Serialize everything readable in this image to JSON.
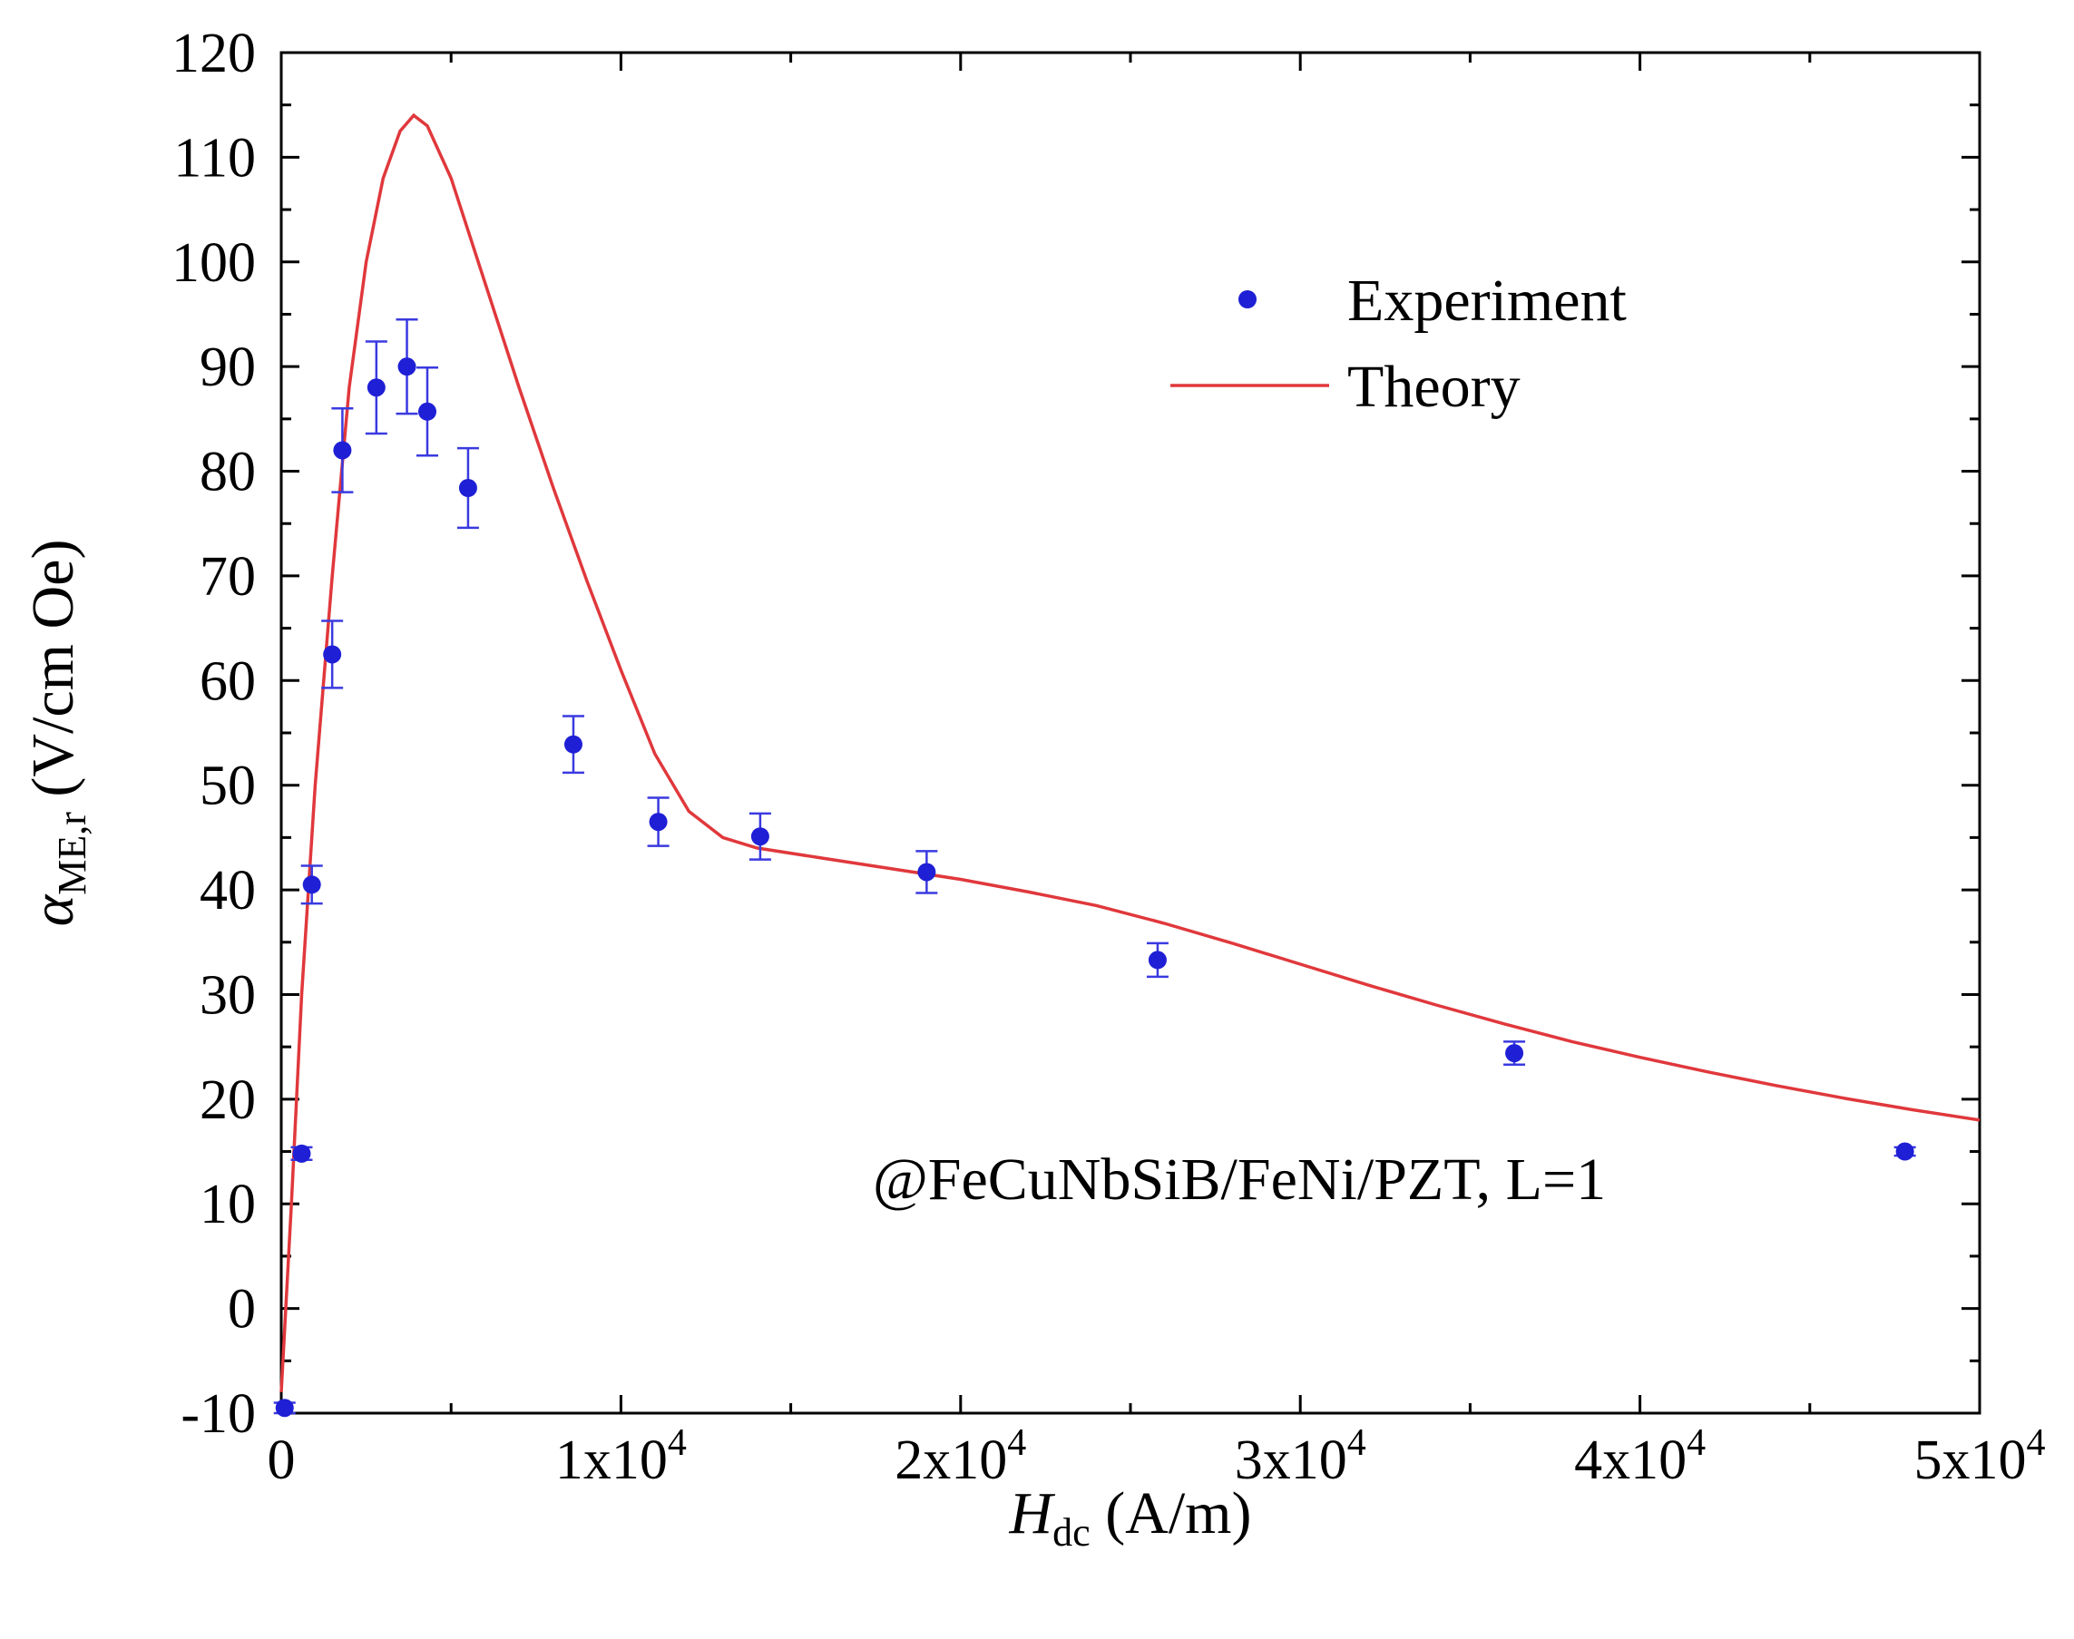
{
  "chart_data": {
    "type": "scatter",
    "xlabel_main": "H",
    "xlabel_sub": "dc",
    "xlabel_unit": " (A/m)",
    "ylabel_main": "α",
    "ylabel_sub": "ME,r",
    "ylabel_unit": " (V/cm Oe)",
    "xlim": [
      0,
      50000
    ],
    "ylim": [
      -10,
      120
    ],
    "xticks": [
      {
        "value": 0,
        "base": "0",
        "exp": ""
      },
      {
        "value": 10000,
        "base": "1x10",
        "exp": "4"
      },
      {
        "value": 20000,
        "base": "2x10",
        "exp": "4"
      },
      {
        "value": 30000,
        "base": "3x10",
        "exp": "4"
      },
      {
        "value": 40000,
        "base": "4x10",
        "exp": "4"
      },
      {
        "value": 50000,
        "base": "5x10",
        "exp": "4"
      }
    ],
    "yticks": [
      "-10",
      "0",
      "10",
      "20",
      "30",
      "40",
      "50",
      "60",
      "70",
      "80",
      "90",
      "100",
      "110",
      "120"
    ],
    "legend": {
      "position": "top-right",
      "experiment": "Experiment",
      "theory": "Theory"
    },
    "annotation": "@FeCuNbSiB/FeNi/PZT, L=1",
    "colors": {
      "experiment": "#1f1fd6",
      "errorbar": "#3a3ae0",
      "theory": "#e0383c",
      "axis": "#000000"
    },
    "series": [
      {
        "name": "Experiment",
        "x": [
          100,
          600,
          900,
          1500,
          1800,
          2800,
          3700,
          4300,
          5500,
          8600,
          11100,
          14100,
          19000,
          25800,
          36300,
          47800
        ],
        "y": [
          -9.5,
          14.8,
          40.5,
          62.5,
          82,
          88,
          90,
          85.7,
          78.4,
          53.9,
          46.5,
          45.1,
          41.7,
          33.3,
          24.4,
          15
        ],
        "err": [
          0.5,
          0.6,
          1.8,
          3.2,
          4.0,
          4.4,
          4.5,
          4.2,
          3.8,
          2.7,
          2.3,
          2.2,
          2.0,
          1.6,
          1.1,
          0.4
        ]
      },
      {
        "name": "Theory",
        "x": [
          0,
          300,
          600,
          1000,
          1500,
          2000,
          2500,
          3000,
          3500,
          3900,
          4300,
          5000,
          6000,
          7000,
          8000,
          9000,
          10000,
          11000,
          12000,
          13000,
          14000,
          16000,
          18000,
          20000,
          22000,
          24000,
          26000,
          28000,
          30000,
          32000,
          34000,
          36000,
          38000,
          40000,
          42000,
          44000,
          46000,
          48000,
          50000
        ],
        "y": [
          -8,
          10,
          30,
          50,
          70,
          88,
          100,
          108,
          112.5,
          114,
          113,
          108,
          98,
          88,
          78.5,
          69.5,
          61,
          53,
          47.5,
          45,
          44,
          43,
          42,
          41,
          39.8,
          38.5,
          36.8,
          34.9,
          32.9,
          30.9,
          29,
          27.2,
          25.5,
          24,
          22.6,
          21.3,
          20.1,
          19,
          18
        ]
      }
    ]
  }
}
